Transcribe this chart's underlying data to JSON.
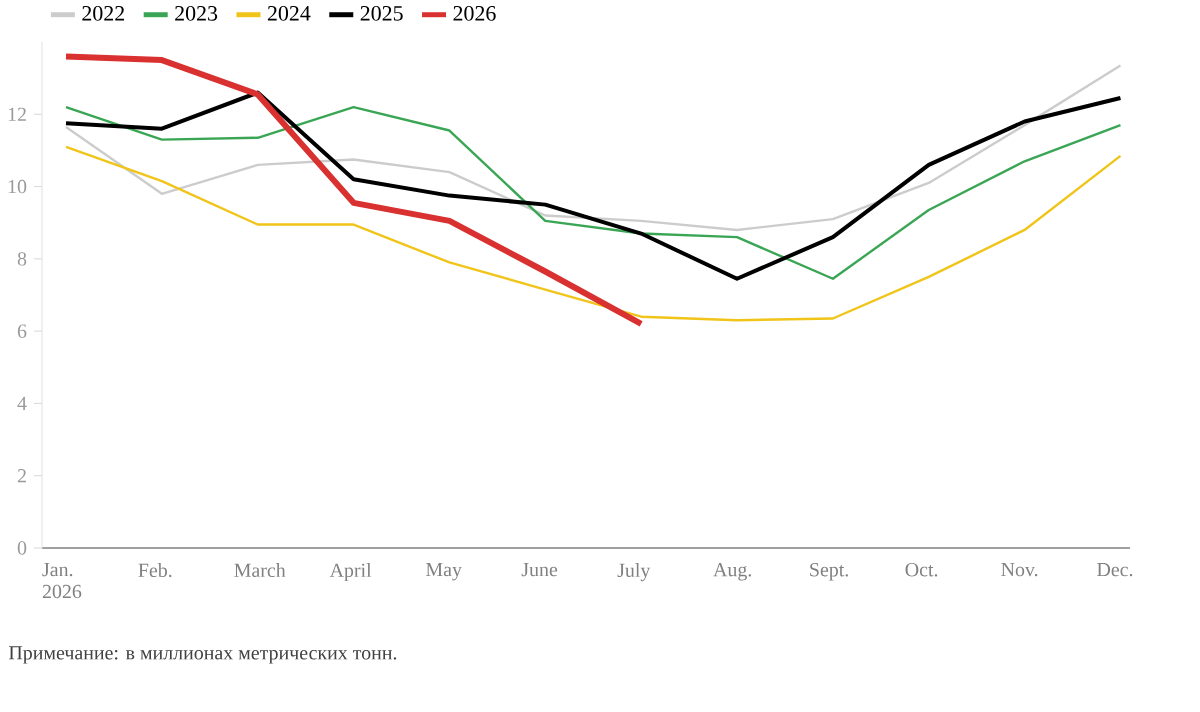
{
  "chart_data": {
    "type": "line",
    "categories": [
      "Jan. 2026",
      "Feb.",
      "March",
      "April",
      "May",
      "June",
      "July",
      "Aug.",
      "Sept.",
      "Oct.",
      "Nov.",
      "Dec."
    ],
    "series": [
      {
        "name": "2022",
        "color": "#cccccc",
        "values": [
          11.65,
          9.8,
          10.6,
          10.75,
          10.4,
          9.2,
          9.05,
          8.8,
          9.1,
          10.1,
          11.7,
          13.35
        ]
      },
      {
        "name": "2023",
        "color": "#3aa655",
        "values": [
          12.2,
          11.3,
          11.35,
          12.2,
          11.55,
          9.05,
          8.7,
          8.6,
          7.45,
          9.35,
          10.7,
          11.7
        ]
      },
      {
        "name": "2024",
        "color": "#f0c419",
        "values": [
          11.1,
          10.15,
          8.95,
          8.95,
          7.9,
          7.15,
          6.4,
          6.3,
          6.35,
          7.5,
          8.8,
          10.85
        ]
      },
      {
        "name": "2025",
        "color": "#000000",
        "values": [
          11.75,
          11.6,
          12.6,
          10.2,
          9.75,
          9.5,
          8.7,
          7.45,
          8.6,
          10.6,
          11.8,
          12.45
        ]
      },
      {
        "name": "2026",
        "color": "#d93030",
        "values": [
          13.6,
          13.5,
          12.55,
          9.55,
          9.05,
          7.65,
          6.2,
          null,
          null,
          null,
          null,
          null
        ]
      }
    ],
    "ylim": [
      0,
      14
    ],
    "yticks": [
      0,
      2,
      4,
      6,
      8,
      10,
      12
    ],
    "grid": false,
    "legend": "top left",
    "marker": "none",
    "line_style": "solid",
    "annotations": [
      "Примечание: в миллионах метрических тонн."
    ]
  }
}
